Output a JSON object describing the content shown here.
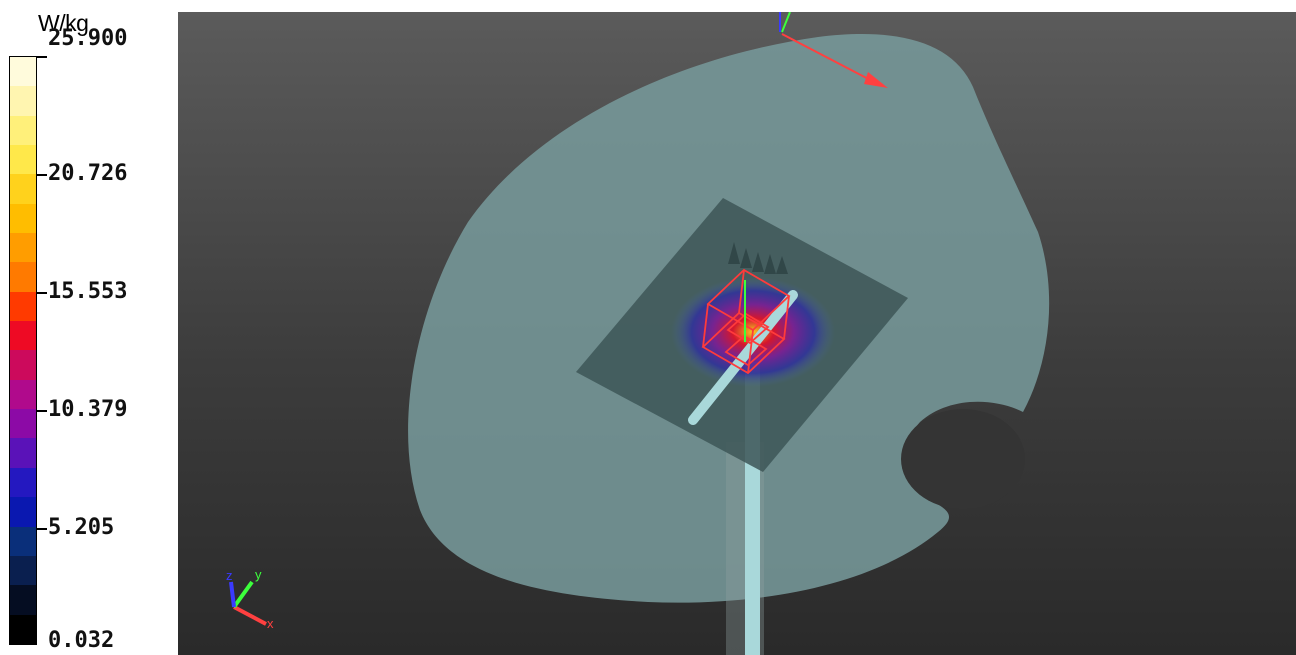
{
  "legend": {
    "unit": "W/kg",
    "ticks": [
      "25.900",
      "20.726",
      "15.553",
      "10.379",
      "5.205",
      "0.032"
    ],
    "colors": [
      "#fffbdc",
      "#fff5b0",
      "#fff07a",
      "#ffe84a",
      "#ffd21c",
      "#ffbd00",
      "#ff9d00",
      "#ff7a00",
      "#ff3a00",
      "#ee0a24",
      "#cc0a5c",
      "#b00a8c",
      "#8c0aa6",
      "#5a12b8",
      "#2418c0",
      "#0a18b0",
      "#0a2f7a",
      "#0a1f4f",
      "#050d22",
      "#000000"
    ]
  },
  "viewport": {
    "phantom_color": "#76999a",
    "grid_plane_color": "#3d5657",
    "probe_color": "#a9d8da",
    "cube_color": "#ff3b3b",
    "axis_colors": {
      "x": "#ff4040",
      "y": "#3cff3c",
      "z": "#3a3aff"
    },
    "triad_labels": {
      "x": "x",
      "y": "y",
      "z": "z"
    }
  }
}
